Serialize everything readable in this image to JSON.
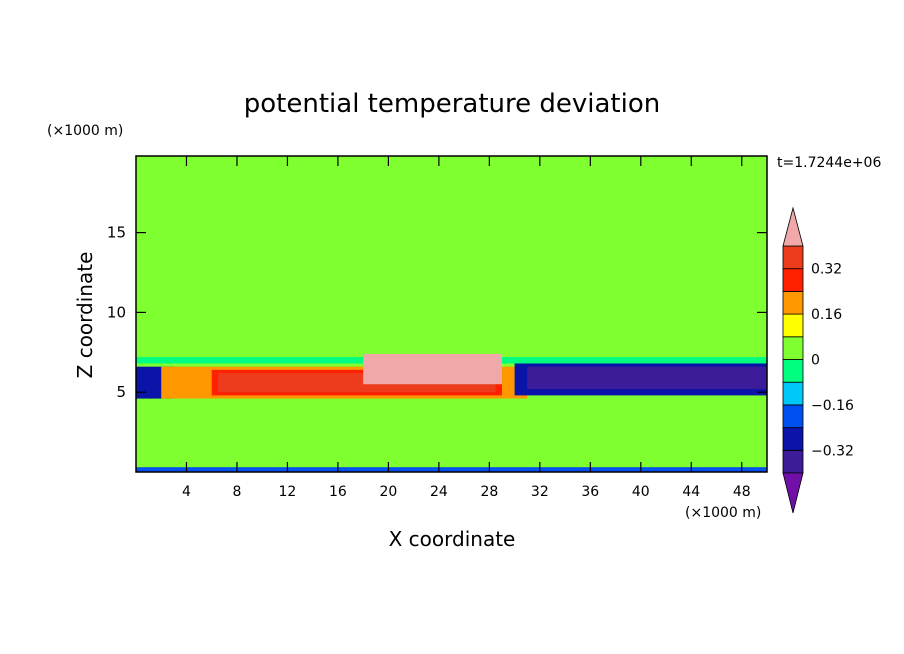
{
  "chart_data": {
    "type": "heatmap",
    "title": "potential temperature deviation",
    "xlabel": "X coordinate",
    "ylabel": "Z coordinate",
    "x_unit": "(×1000 m)",
    "y_unit": "(×1000 m)",
    "time_label": "t=1.7244e+06",
    "xlim": [
      0,
      50
    ],
    "ylim": [
      0,
      19.8
    ],
    "x_ticks": [
      4,
      8,
      12,
      16,
      20,
      24,
      28,
      32,
      36,
      40,
      44,
      48
    ],
    "y_ticks": [
      5,
      10,
      15
    ],
    "colorbar": {
      "levels": [
        -0.4,
        -0.32,
        -0.24,
        -0.16,
        -0.08,
        0,
        0.08,
        0.16,
        0.24,
        0.32,
        0.4
      ],
      "tick_labels": [
        "0.32",
        "0.16",
        "0",
        "−0.16",
        "−0.32"
      ],
      "tick_values": [
        0.32,
        0.16,
        0,
        -0.16,
        -0.32
      ],
      "colors": [
        "#7010a8",
        "#3c1c98",
        "#0a14a8",
        "#0050f0",
        "#00c8f8",
        "#00ff80",
        "#80ff30",
        "#ffff00",
        "#ff9800",
        "#ff2000",
        "#ec3c1c",
        "#f0a8a8"
      ]
    },
    "regions": [
      {
        "x": [
          0,
          50
        ],
        "z": [
          0,
          19.8
        ],
        "value": 0.04
      },
      {
        "x": [
          0,
          50
        ],
        "z": [
          16.2,
          19.8
        ],
        "value": 0.06
      },
      {
        "x": [
          0,
          50
        ],
        "z": [
          13.5,
          15.4
        ],
        "value": 0.02
      },
      {
        "x": [
          0,
          50
        ],
        "z": [
          12.2,
          13.4
        ],
        "value": 0.06
      },
      {
        "x": [
          0,
          50
        ],
        "z": [
          7.2,
          12.2
        ],
        "value": 0.05
      },
      {
        "x": [
          0,
          50
        ],
        "z": [
          6.8,
          7.2
        ],
        "value": -0.05
      },
      {
        "x": [
          0,
          50
        ],
        "z": [
          0,
          4.7
        ],
        "value": 0.05
      },
      {
        "x": [
          0,
          3
        ],
        "z": [
          4.6,
          6.6
        ],
        "value": -0.32
      },
      {
        "x": [
          0,
          3.5
        ],
        "z": [
          5.2,
          6.4
        ],
        "value": -0.25
      },
      {
        "x": [
          2,
          31
        ],
        "z": [
          4.6,
          6.6
        ],
        "value": 0.2
      },
      {
        "x": [
          6,
          29
        ],
        "z": [
          4.8,
          6.4
        ],
        "value": 0.3
      },
      {
        "x": [
          6.5,
          28.5
        ],
        "z": [
          5.0,
          6.2
        ],
        "value": 0.36
      },
      {
        "x": [
          18,
          29
        ],
        "z": [
          5.5,
          7.4
        ],
        "value": 0.44
      },
      {
        "x": [
          30,
          50
        ],
        "z": [
          4.8,
          6.8
        ],
        "value": -0.3
      },
      {
        "x": [
          31,
          50
        ],
        "z": [
          5.2,
          6.6
        ],
        "value": -0.38
      },
      {
        "x": [
          0,
          50
        ],
        "z": [
          0,
          0.3
        ],
        "value": -0.2
      }
    ]
  }
}
